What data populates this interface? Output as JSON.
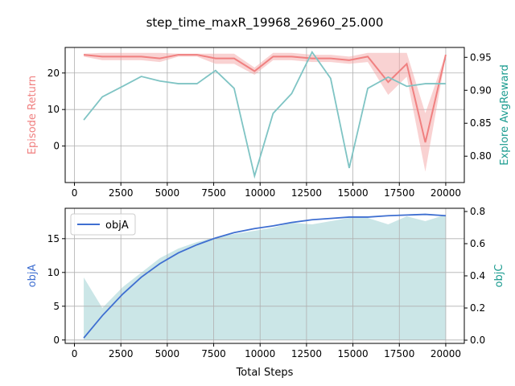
{
  "figure": {
    "title": "step_time_maxR_19968_26960_25.000"
  },
  "colors": {
    "return_line": "#f08080",
    "return_band": "#f4a6a6",
    "explore_line": "#7fc4c4",
    "objA_line": "#3f6fd1",
    "objC_fill": "#b9dedf",
    "grid": "#b0b0b0",
    "left_label_top": "#f08080",
    "right_label_top": "#1a9b8f",
    "left_label_bottom": "#3f6fd1",
    "right_label_bottom": "#1a9b8f"
  },
  "chart_data": [
    {
      "type": "line",
      "xlabel": "",
      "ylabel_left": "Episode Return",
      "ylabel_right": "Explore AvgReward",
      "xlim": [
        -500,
        21000
      ],
      "ylim_left": [
        -10,
        27
      ],
      "ylim_right": [
        0.76,
        0.965
      ],
      "x_ticks": [
        0,
        2500,
        5000,
        7500,
        10000,
        12500,
        15000,
        17500,
        20000
      ],
      "y_ticks_left": [
        0,
        10,
        20
      ],
      "y_ticks_right": [
        0.8,
        0.85,
        0.9,
        0.95
      ],
      "y_tick_labels_right": [
        "0.80",
        "0.85",
        "0.90",
        "0.95"
      ],
      "grid": true,
      "x": [
        500,
        1500,
        2600,
        3600,
        4600,
        5600,
        6600,
        7600,
        8600,
        9700,
        10700,
        11700,
        12800,
        13800,
        14800,
        15800,
        16900,
        17900,
        18900,
        20000
      ],
      "series": [
        {
          "name": "Episode Return",
          "axis": "left",
          "values": [
            25,
            24.5,
            24.5,
            24.5,
            24,
            25,
            25,
            24,
            24,
            20.5,
            24.5,
            24.5,
            24,
            24,
            23.5,
            24.5,
            17.5,
            22.5,
            1,
            25
          ],
          "band_low": [
            24.5,
            23.5,
            23.5,
            23.5,
            23,
            24.5,
            24.5,
            22.5,
            22.5,
            19.5,
            23.5,
            23.5,
            23,
            23,
            22.5,
            23,
            14,
            19,
            -7,
            24.5
          ],
          "band_high": [
            25.3,
            25.5,
            25.5,
            25.5,
            25.5,
            25.3,
            25.3,
            25.3,
            25.3,
            21.5,
            25.5,
            25.5,
            25,
            25,
            24.5,
            25.5,
            25.5,
            25.5,
            9,
            25.3
          ]
        },
        {
          "name": "Explore AvgReward",
          "axis": "right",
          "values": [
            0.855,
            0.89,
            0.906,
            0.921,
            0.914,
            0.91,
            0.91,
            0.93,
            0.903,
            0.77,
            0.865,
            0.895,
            0.958,
            0.918,
            0.782,
            0.903,
            0.92,
            0.906,
            0.91,
            0.91
          ]
        }
      ]
    },
    {
      "type": "line",
      "xlabel": "Total Steps",
      "ylabel_left": "objA",
      "ylabel_right": "objC",
      "xlim": [
        -500,
        21000
      ],
      "ylim_left": [
        -0.5,
        19.5
      ],
      "ylim_right": [
        -0.02,
        0.82
      ],
      "x_ticks": [
        0,
        2500,
        5000,
        7500,
        10000,
        12500,
        15000,
        17500,
        20000
      ],
      "y_ticks_left": [
        0,
        5,
        10,
        15
      ],
      "y_ticks_right": [
        0.0,
        0.2,
        0.4,
        0.6,
        0.8
      ],
      "y_tick_labels_right": [
        "0.0",
        "0.2",
        "0.4",
        "0.6",
        "0.8"
      ],
      "grid": true,
      "legend": {
        "position": "top-left",
        "entries": [
          "objA"
        ]
      },
      "x": [
        500,
        1500,
        2600,
        3600,
        4600,
        5600,
        6600,
        7600,
        8600,
        9700,
        10700,
        11700,
        12800,
        13800,
        14800,
        15800,
        16900,
        17900,
        18900,
        20000
      ],
      "series": [
        {
          "name": "objA",
          "axis": "left",
          "values": [
            0.3,
            3.6,
            6.8,
            9.3,
            11.3,
            12.9,
            14.1,
            15.1,
            15.9,
            16.5,
            16.9,
            17.4,
            17.8,
            18.0,
            18.2,
            18.2,
            18.4,
            18.5,
            18.6,
            18.4
          ]
        },
        {
          "name": "objC",
          "axis": "right",
          "values": [
            0.39,
            0.2,
            0.33,
            0.42,
            0.51,
            0.57,
            0.61,
            0.64,
            0.66,
            0.68,
            0.7,
            0.73,
            0.72,
            0.74,
            0.76,
            0.76,
            0.72,
            0.77,
            0.74,
            0.78
          ]
        }
      ]
    }
  ]
}
